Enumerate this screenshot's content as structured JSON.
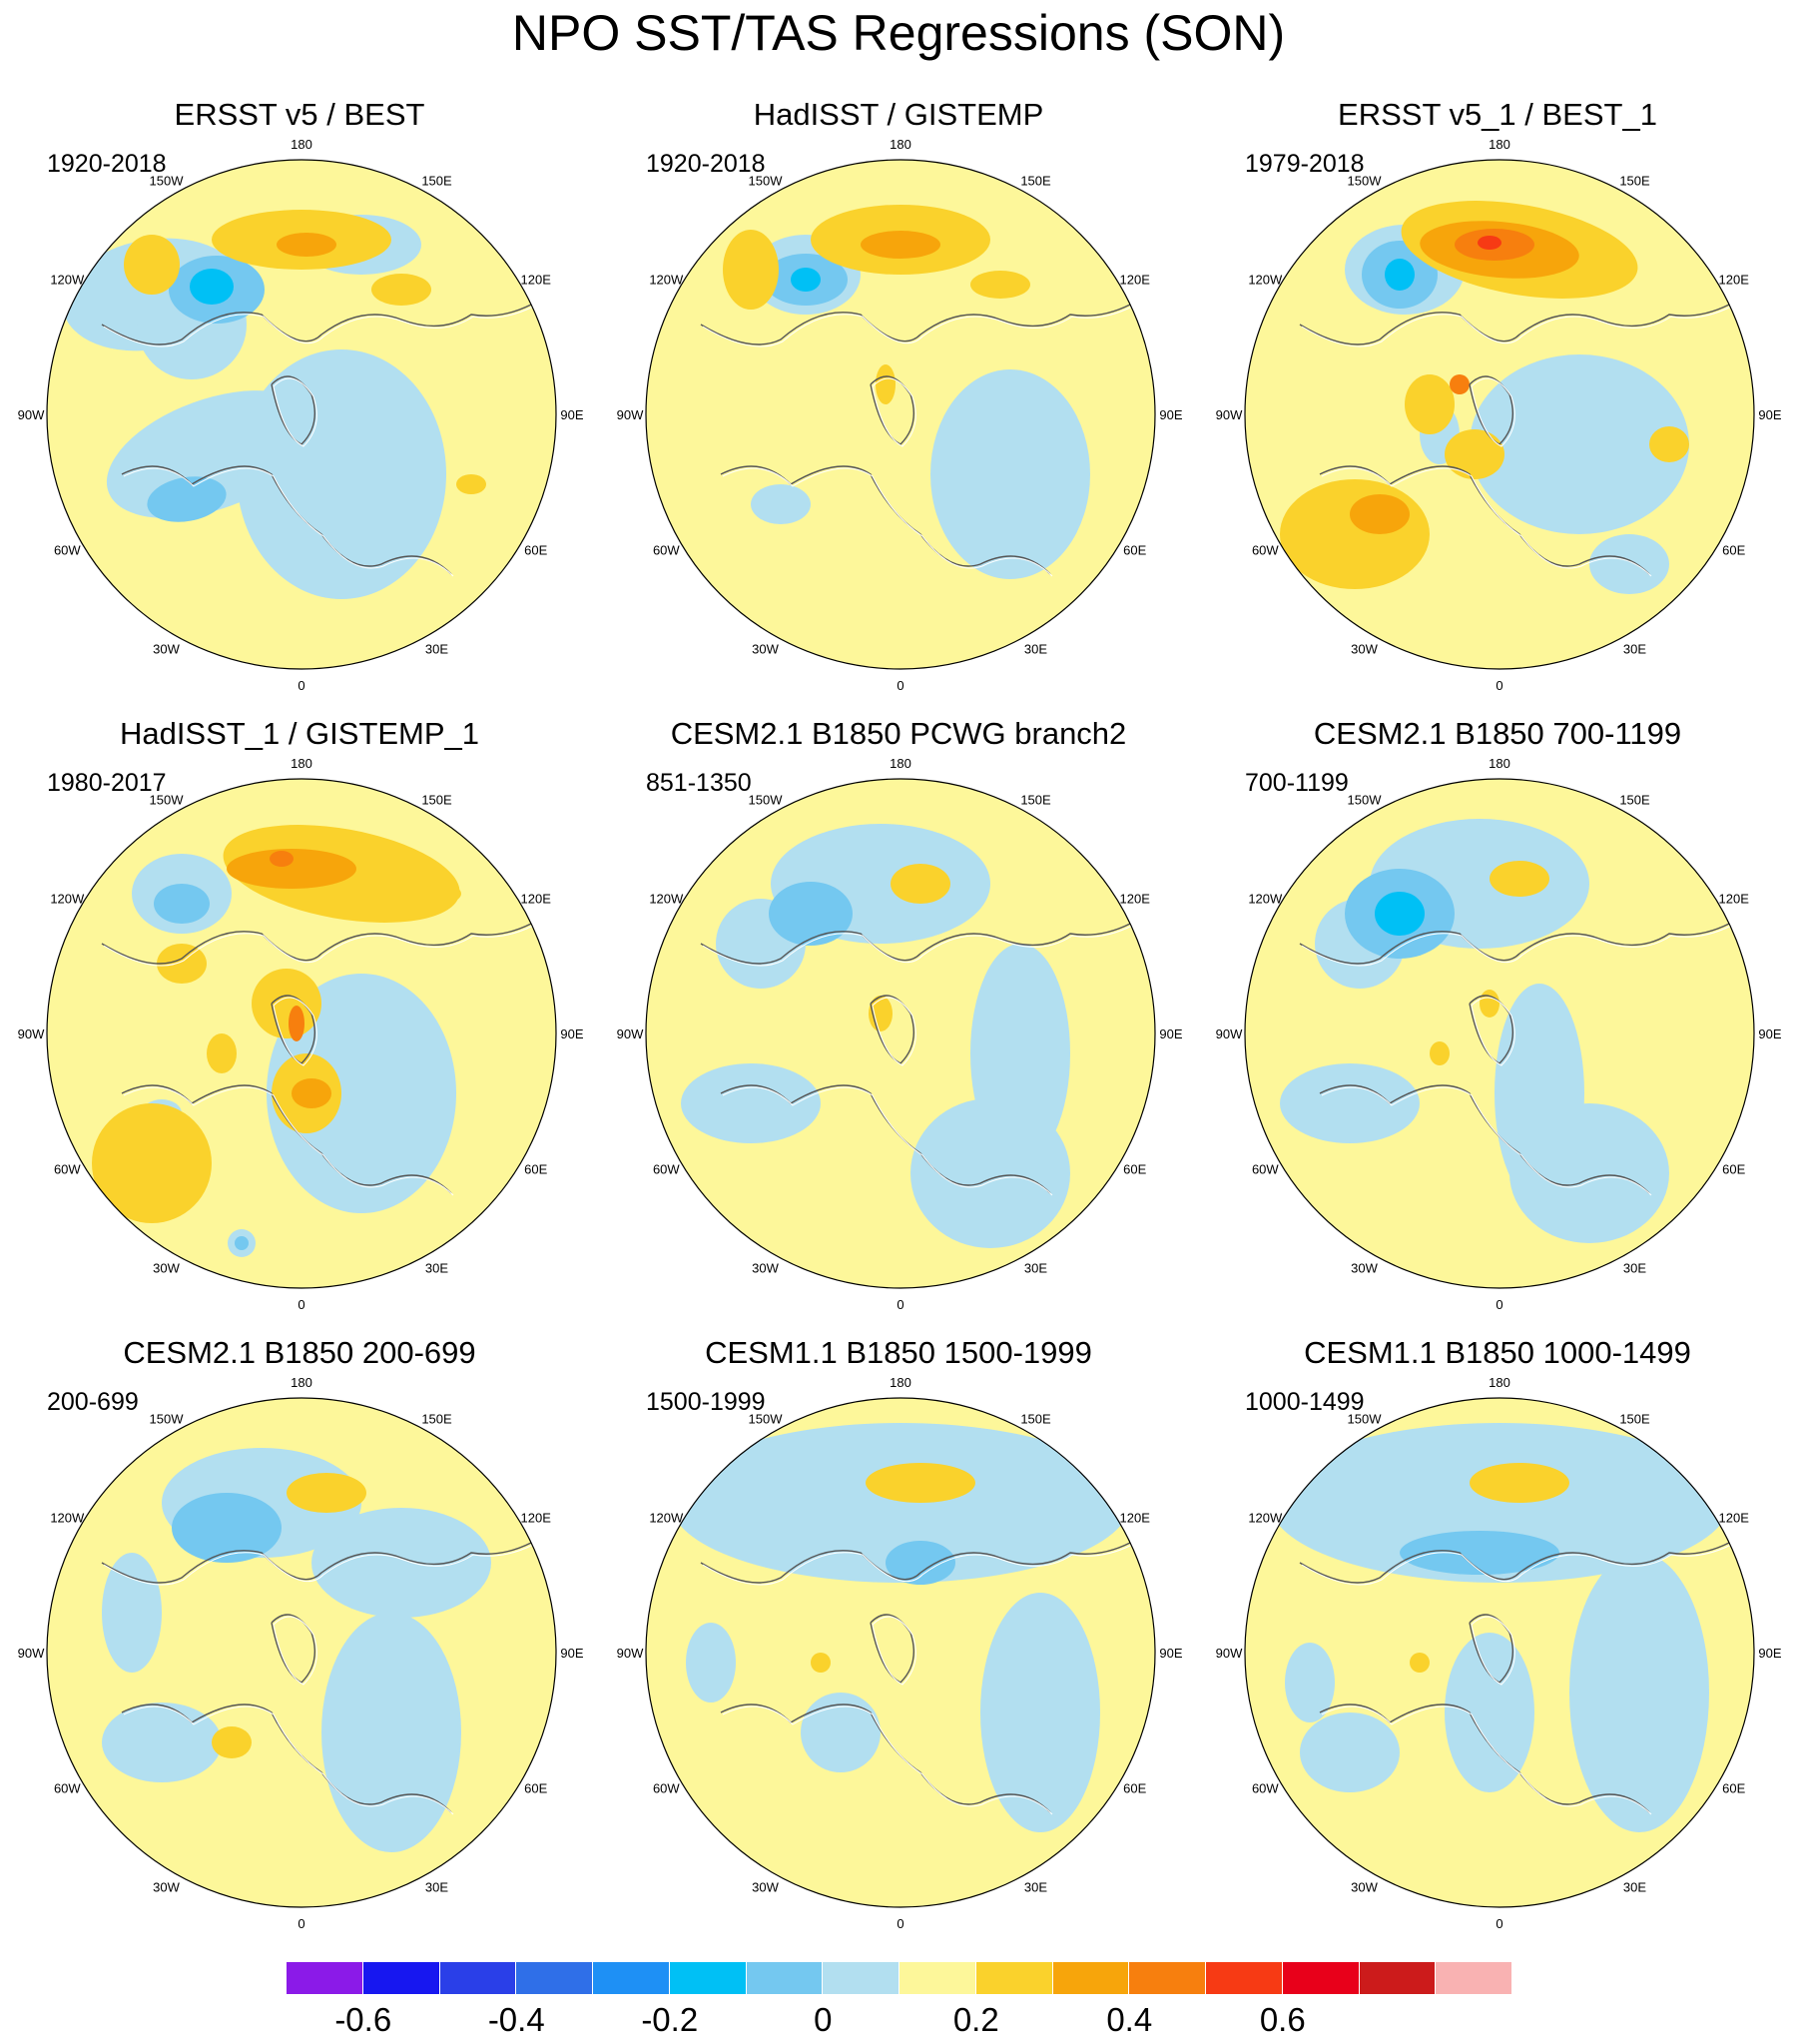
{
  "title": "NPO SST/TAS Regressions (SON)",
  "panels": [
    {
      "title": "ERSST v5 / BEST",
      "period": "1920-2018",
      "pattern": "obs_early"
    },
    {
      "title": "HadISST / GISTEMP",
      "period": "1920-2018",
      "pattern": "obs_early2"
    },
    {
      "title": "ERSST v5_1 / BEST_1",
      "period": "1979-2018",
      "pattern": "obs_recent"
    },
    {
      "title": "HadISST_1 / GISTEMP_1",
      "period": "1980-2017",
      "pattern": "obs_recent2"
    },
    {
      "title": "CESM2.1 B1850 PCWG branch2",
      "period": "851-1350",
      "pattern": "model_a"
    },
    {
      "title": "CESM2.1 B1850 700-1199",
      "period": "700-1199",
      "pattern": "model_b"
    },
    {
      "title": "CESM2.1 B1850 200-699",
      "period": "200-699",
      "pattern": "model_c"
    },
    {
      "title": "CESM1.1 B1850 1500-1999",
      "period": "1500-1999",
      "pattern": "model_d"
    },
    {
      "title": "CESM1.1 B1850 1000-1499",
      "period": "1000-1499",
      "pattern": "model_e"
    }
  ],
  "longitude_labels": [
    "180",
    "150E",
    "120E",
    "90E",
    "60E",
    "30E",
    "0",
    "30W",
    "60W",
    "90W",
    "120W",
    "150W"
  ],
  "colorbar": {
    "colors": [
      "#8b1ae8",
      "#1717f0",
      "#2a3fe8",
      "#2f6fe8",
      "#1e90f5",
      "#00c0f5",
      "#74c8f0",
      "#b2dff0",
      "#fdf79a",
      "#fad22c",
      "#f7a50b",
      "#f77f0e",
      "#f73a14",
      "#e8001a",
      "#cc1b1b",
      "#f9b2b2"
    ],
    "tick_labels": [
      "-0.6",
      "-0.4",
      "-0.2",
      "0",
      "0.2",
      "0.4",
      "0.6"
    ],
    "tick_values": [
      -0.6,
      -0.4,
      -0.2,
      0,
      0.2,
      0.4,
      0.6
    ],
    "levels_min": -0.7,
    "levels_step": 0.1
  }
}
